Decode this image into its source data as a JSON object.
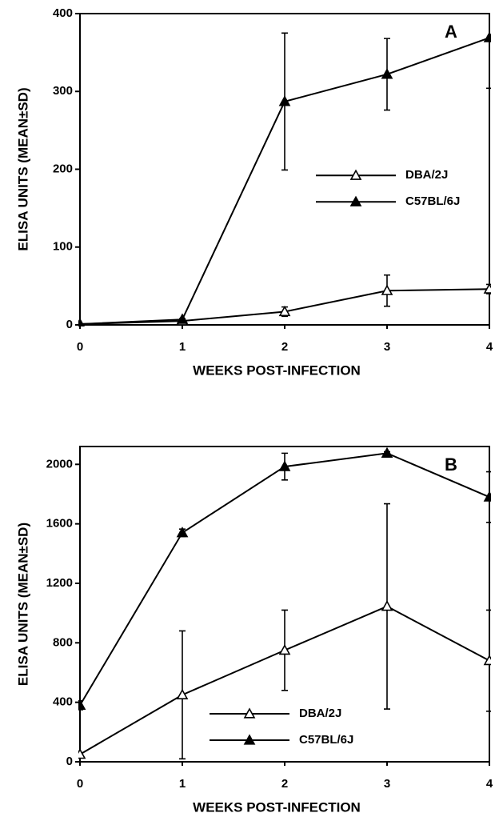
{
  "chart_data": [
    {
      "type": "line",
      "panel_label": "A",
      "x_label": "WEEKS POST-INFECTION",
      "y_label": "ELISA UNITS (MEAN±SD)",
      "x": [
        0,
        1,
        2,
        3,
        4
      ],
      "xlim": [
        0,
        4
      ],
      "xticks": [
        0,
        1,
        2,
        3,
        4
      ],
      "ylim": [
        0,
        400
      ],
      "yticks": [
        0,
        100,
        200,
        300,
        400
      ],
      "legend": "center right",
      "series": [
        {
          "name": "DBA/2J",
          "color": "#000000",
          "marker": "open",
          "values": [
            1,
            5,
            17,
            44,
            46
          ],
          "errors": [
            0,
            1,
            6,
            20,
            6
          ]
        },
        {
          "name": "C57BL/6J",
          "color": "#000000",
          "marker": "filled",
          "values": [
            1,
            7,
            287,
            322,
            369
          ],
          "errors": [
            0,
            1,
            88,
            46,
            65
          ]
        }
      ]
    },
    {
      "type": "line",
      "panel_label": "B",
      "x_label": "WEEKS POST-INFECTION",
      "y_label": "ELISA UNITS (MEAN±SD)",
      "x": [
        0,
        1,
        2,
        3,
        4
      ],
      "xlim": [
        0,
        4
      ],
      "xticks": [
        0,
        1,
        2,
        3,
        4
      ],
      "ylim": [
        0,
        2120
      ],
      "yticks": [
        0,
        400,
        800,
        1200,
        1600,
        2000
      ],
      "legend": "lower center",
      "series": [
        {
          "name": "DBA/2J",
          "color": "#000000",
          "marker": "open",
          "values": [
            50,
            450,
            750,
            1045,
            680
          ],
          "errors": [
            0,
            430,
            270,
            690,
            340
          ]
        },
        {
          "name": "C57BL/6J",
          "color": "#000000",
          "marker": "filled",
          "values": [
            380,
            1540,
            1985,
            2075,
            1780
          ],
          "errors": [
            30,
            25,
            90,
            10,
            170
          ]
        }
      ]
    }
  ]
}
